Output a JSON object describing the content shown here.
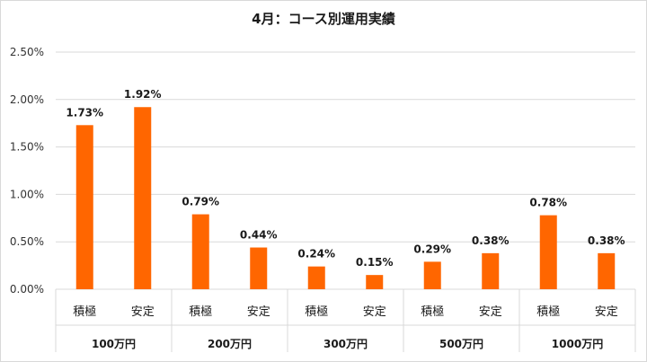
{
  "chart_data": {
    "type": "bar",
    "title": "4月：コース別運用実績",
    "groups": [
      {
        "name": "100万円",
        "categories": [
          "積極",
          "安定"
        ],
        "values": [
          1.73,
          1.92
        ],
        "labels": [
          "1.73%",
          "1.92%"
        ]
      },
      {
        "name": "200万円",
        "categories": [
          "積極",
          "安定"
        ],
        "values": [
          0.79,
          0.44
        ],
        "labels": [
          "0.79%",
          "0.44%"
        ]
      },
      {
        "name": "300万円",
        "categories": [
          "積極",
          "安定"
        ],
        "values": [
          0.24,
          0.15
        ],
        "labels": [
          "0.24%",
          "0.15%"
        ]
      },
      {
        "name": "500万円",
        "categories": [
          "積極",
          "安定"
        ],
        "values": [
          0.29,
          0.38
        ],
        "labels": [
          "0.29%",
          "0.38%"
        ]
      },
      {
        "name": "1000万円",
        "categories": [
          "積極",
          "安定"
        ],
        "values": [
          0.78,
          0.38
        ],
        "labels": [
          "0.78%",
          "0.38%"
        ]
      }
    ],
    "ylim": [
      0,
      2.5
    ],
    "yticks": [
      0,
      0.5,
      1.0,
      1.5,
      2.0,
      2.5
    ],
    "ytick_labels": [
      "0.00%",
      "0.50%",
      "1.00%",
      "1.50%",
      "2.00%",
      "2.50%"
    ],
    "xlabel": "",
    "ylabel": "",
    "grid": true,
    "legend": "none",
    "bar_color": "#ff6600",
    "grid_color": "#d9d9d9"
  }
}
